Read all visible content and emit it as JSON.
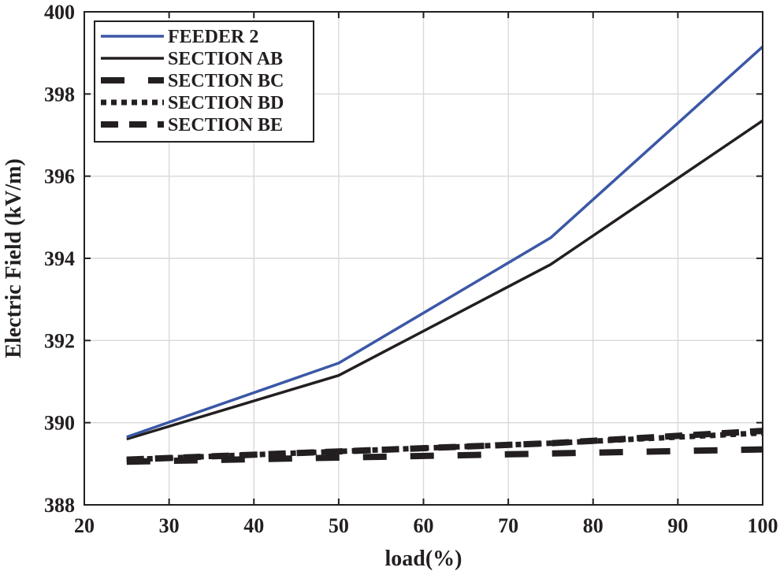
{
  "chart_data": {
    "type": "line",
    "title": "",
    "xlabel": "load(%)",
    "ylabel": "Electric Field (kV/m)",
    "xlim": [
      20,
      100
    ],
    "ylim": [
      388,
      400
    ],
    "xticks": [
      20,
      30,
      40,
      50,
      60,
      70,
      80,
      90,
      100
    ],
    "yticks": [
      388,
      390,
      392,
      394,
      396,
      398,
      400
    ],
    "grid": true,
    "legend_position": "top-left",
    "x": [
      25,
      50,
      75,
      100
    ],
    "series": [
      {
        "name": "FEEDER 2",
        "values": [
          389.65,
          391.45,
          394.5,
          399.15
        ],
        "color": "#3b57a6",
        "style": "solid"
      },
      {
        "name": "SECTION AB",
        "values": [
          389.6,
          391.15,
          393.85,
          397.35
        ],
        "color": "#231f20",
        "style": "solid"
      },
      {
        "name": "SECTION BC",
        "values": [
          389.05,
          389.15,
          389.25,
          389.35
        ],
        "color": "#231f20",
        "style": "dash-long"
      },
      {
        "name": "SECTION BD",
        "values": [
          389.1,
          389.3,
          389.5,
          389.75
        ],
        "color": "#231f20",
        "style": "dotted"
      },
      {
        "name": "SECTION BE",
        "values": [
          389.1,
          389.3,
          389.5,
          389.8
        ],
        "color": "#231f20",
        "style": "dashed"
      }
    ]
  }
}
